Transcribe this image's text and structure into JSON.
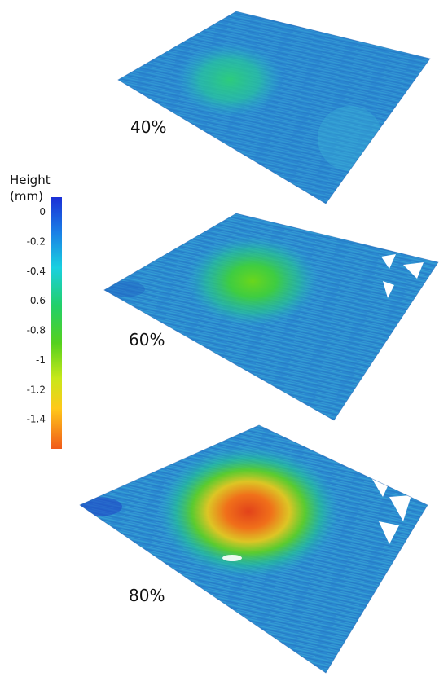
{
  "colorbar": {
    "title_line1": "Height",
    "title_line2": "(mm)",
    "min": -1.6,
    "max": 0.1,
    "ticks": [
      "0",
      "-0.2",
      "-0.4",
      "-0.6",
      "-0.8",
      "-1",
      "-1.2",
      "-1.4"
    ],
    "tick_values": [
      0,
      -0.2,
      -0.4,
      -0.6,
      -0.8,
      -1,
      -1.2,
      -1.4
    ],
    "colors": [
      "#1b2fd6",
      "#1a7fe6",
      "#19d0e0",
      "#22d06a",
      "#55d11e",
      "#c8e81a",
      "#ffc81a",
      "#f05a1a"
    ]
  },
  "surfaces": [
    {
      "label": "40%",
      "min_height": -0.55
    },
    {
      "label": "60%",
      "min_height": -0.85
    },
    {
      "label": "80%",
      "min_height": -1.5
    }
  ]
}
